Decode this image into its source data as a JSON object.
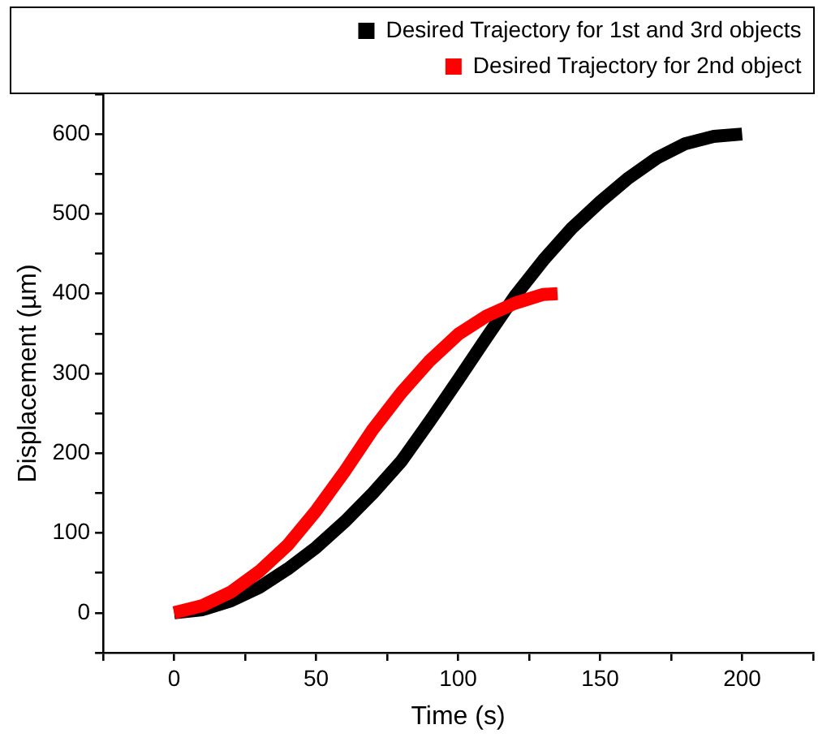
{
  "chart_data": {
    "type": "line",
    "xlabel": "Time (s)",
    "ylabel": "Displacement (µm)",
    "xlim": [
      -25,
      225
    ],
    "xticks": [
      {
        "value": -25,
        "label": null
      },
      0,
      {
        "value": 25,
        "label": null
      },
      50,
      {
        "value": 75,
        "label": null
      },
      100,
      {
        "value": 125,
        "label": null
      },
      150,
      {
        "value": 175,
        "label": null
      },
      200,
      {
        "value": 225,
        "label": null
      }
    ],
    "ylim": [
      -50,
      650
    ],
    "yticks": [
      {
        "value": -50,
        "label": null
      },
      0,
      {
        "value": 50,
        "label": null
      },
      100,
      {
        "value": 150,
        "label": null
      },
      200,
      {
        "value": 250,
        "label": null
      },
      300,
      {
        "value": 350,
        "label": null
      },
      400,
      {
        "value": 450,
        "label": null
      },
      500,
      {
        "value": 550,
        "label": null
      },
      600,
      {
        "value": 650,
        "label": null
      }
    ],
    "grid": false,
    "legend": "top right",
    "line_style": "solid",
    "series": [
      {
        "name": "Desired Trajectory for 1st and 3rd objects",
        "color": "#000000",
        "x": [
          0,
          10,
          20,
          30,
          40,
          50,
          60,
          70,
          80,
          90,
          100,
          110,
          120,
          130,
          140,
          150,
          160,
          170,
          180,
          190,
          200
        ],
        "values": [
          0,
          4,
          15,
          32,
          55,
          82,
          114,
          150,
          190,
          240,
          292,
          345,
          397,
          442,
          482,
          515,
          545,
          570,
          588,
          597,
          600
        ]
      },
      {
        "name": "Desired Trajectory for 2nd object",
        "color": "#ff0000",
        "x": [
          0,
          10,
          20,
          30,
          40,
          50,
          60,
          70,
          80,
          90,
          100,
          110,
          120,
          130,
          135
        ],
        "values": [
          0,
          9,
          26,
          52,
          85,
          128,
          177,
          230,
          276,
          316,
          349,
          372,
          388,
          399,
          400
        ]
      }
    ]
  }
}
